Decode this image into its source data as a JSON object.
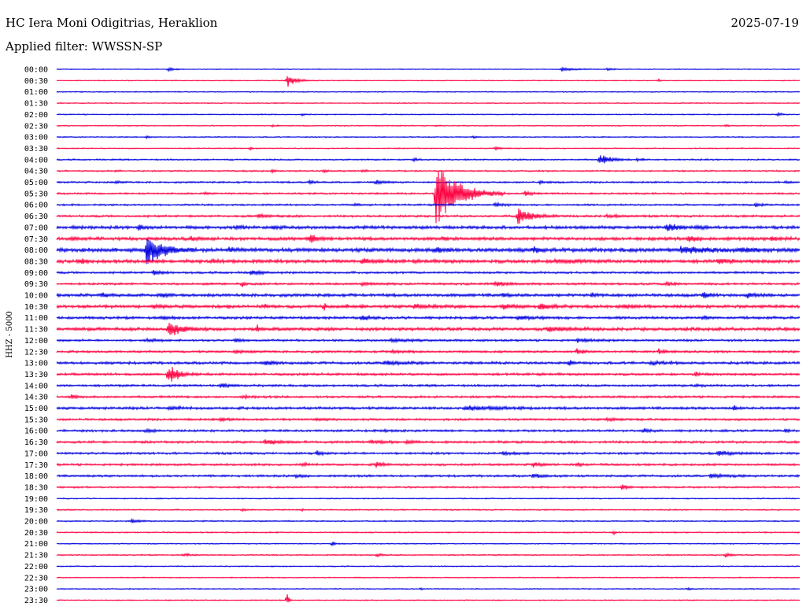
{
  "header": {
    "station": "HC Iera Moni Odigitrias, Heraklion",
    "date": "2025-07-19",
    "filter": "Applied filter: WWSSN-SP"
  },
  "chart_data": {
    "type": "line",
    "title": "HC Iera Moni Odigitrias, Heraklion",
    "ylabel": "HHZ - 5000",
    "grid": false,
    "series_colors": [
      "#0000e0",
      "#ff0040"
    ],
    "rows": [
      {
        "label": "00:00",
        "color": "#0000e0",
        "noise": 0.4,
        "bursts": [
          [
            0.15,
            3,
            14
          ],
          [
            0.68,
            3,
            30
          ],
          [
            0.74,
            2,
            20
          ]
        ]
      },
      {
        "label": "00:30",
        "color": "#ff0040",
        "noise": 0.4,
        "bursts": [
          [
            0.31,
            9,
            22
          ],
          [
            0.81,
            2,
            6
          ]
        ]
      },
      {
        "label": "01:00",
        "color": "#0000e0",
        "noise": 0.5,
        "bursts": []
      },
      {
        "label": "01:30",
        "color": "#ff0040",
        "noise": 0.5,
        "bursts": []
      },
      {
        "label": "02:00",
        "color": "#0000e0",
        "noise": 0.5,
        "bursts": [
          [
            0.33,
            2,
            6
          ],
          [
            0.97,
            3,
            12
          ]
        ]
      },
      {
        "label": "02:30",
        "color": "#ff0040",
        "noise": 0.5,
        "bursts": [
          [
            0.29,
            2,
            10
          ],
          [
            0.51,
            1.5,
            6
          ],
          [
            0.9,
            2,
            8
          ]
        ]
      },
      {
        "label": "03:00",
        "color": "#0000e0",
        "noise": 0.5,
        "bursts": [
          [
            0.12,
            2,
            8
          ],
          [
            0.56,
            2,
            8
          ]
        ]
      },
      {
        "label": "03:30",
        "color": "#ff0040",
        "noise": 0.5,
        "bursts": [
          [
            0.26,
            2,
            8
          ],
          [
            0.59,
            2,
            20
          ]
        ]
      },
      {
        "label": "04:00",
        "color": "#0000e0",
        "noise": 0.7,
        "bursts": [
          [
            0.48,
            3,
            8
          ],
          [
            0.73,
            9,
            26
          ],
          [
            0.78,
            2,
            20
          ]
        ]
      },
      {
        "label": "04:30",
        "color": "#ff0040",
        "noise": 0.7,
        "bursts": [
          [
            0.08,
            2,
            6
          ],
          [
            0.29,
            3,
            8
          ],
          [
            0.36,
            2,
            10
          ],
          [
            0.41,
            2,
            10
          ]
        ]
      },
      {
        "label": "05:00",
        "color": "#0000e0",
        "noise": 0.8,
        "bursts": [
          [
            0.08,
            2,
            12
          ],
          [
            0.34,
            3,
            14
          ],
          [
            0.43,
            3,
            20
          ],
          [
            0.65,
            2,
            16
          ],
          [
            0.98,
            2,
            12
          ]
        ]
      },
      {
        "label": "05:30",
        "color": "#ff0040",
        "noise": 0.8,
        "bursts": [
          [
            0.2,
            2,
            10
          ],
          [
            0.51,
            55,
            55
          ],
          [
            0.63,
            3,
            20
          ]
        ]
      },
      {
        "label": "06:00",
        "color": "#0000e0",
        "noise": 0.8,
        "bursts": [
          [
            0.4,
            2,
            20
          ],
          [
            0.59,
            3,
            24
          ],
          [
            0.94,
            3,
            16
          ]
        ]
      },
      {
        "label": "06:30",
        "color": "#ff0040",
        "noise": 1.0,
        "bursts": [
          [
            0.27,
            2,
            30
          ],
          [
            0.62,
            14,
            34
          ],
          [
            0.74,
            2,
            30
          ]
        ]
      },
      {
        "label": "07:00",
        "color": "#0000e0",
        "noise": 1.4,
        "bursts": [
          [
            0.02,
            2,
            20
          ],
          [
            0.11,
            4,
            18
          ],
          [
            0.24,
            2,
            20
          ],
          [
            0.29,
            3,
            18
          ],
          [
            0.82,
            6,
            28
          ],
          [
            0.86,
            3,
            20
          ]
        ]
      },
      {
        "label": "07:30",
        "color": "#ff0040",
        "noise": 1.5,
        "bursts": [
          [
            0.02,
            2,
            18
          ],
          [
            0.18,
            3,
            16
          ],
          [
            0.34,
            7,
            18
          ],
          [
            0.52,
            2,
            12
          ],
          [
            0.85,
            5,
            16
          ],
          [
            0.96,
            3,
            24
          ]
        ]
      },
      {
        "label": "08:00",
        "color": "#0000e0",
        "noise": 1.8,
        "bursts": [
          [
            0.12,
            26,
            40
          ],
          [
            0.23,
            3,
            20
          ],
          [
            0.51,
            4,
            18
          ],
          [
            0.64,
            4,
            24
          ],
          [
            0.84,
            5,
            60
          ],
          [
            0.92,
            3,
            40
          ]
        ]
      },
      {
        "label": "08:30",
        "color": "#ff0040",
        "noise": 1.6,
        "bursts": [
          [
            0.03,
            3,
            16
          ],
          [
            0.21,
            2,
            18
          ],
          [
            0.41,
            4,
            30
          ],
          [
            0.67,
            3,
            40
          ],
          [
            0.89,
            3,
            30
          ]
        ]
      },
      {
        "label": "09:00",
        "color": "#0000e0",
        "noise": 1.0,
        "bursts": [
          [
            0.13,
            3,
            24
          ],
          [
            0.26,
            3,
            30
          ]
        ]
      },
      {
        "label": "09:30",
        "color": "#ff0040",
        "noise": 1.0,
        "bursts": [
          [
            0.25,
            5,
            6
          ],
          [
            0.41,
            2,
            30
          ],
          [
            0.59,
            3,
            40
          ],
          [
            0.82,
            2,
            20
          ]
        ]
      },
      {
        "label": "10:00",
        "color": "#0000e0",
        "noise": 1.4,
        "bursts": [
          [
            0.06,
            3,
            18
          ],
          [
            0.14,
            3,
            14
          ],
          [
            0.6,
            3,
            10
          ],
          [
            0.72,
            3,
            12
          ],
          [
            0.87,
            8,
            10
          ],
          [
            0.93,
            3,
            20
          ]
        ]
      },
      {
        "label": "10:30",
        "color": "#ff0040",
        "noise": 1.4,
        "bursts": [
          [
            0.13,
            2,
            30
          ],
          [
            0.23,
            7,
            3
          ],
          [
            0.28,
            7,
            3
          ],
          [
            0.36,
            7,
            4
          ],
          [
            0.39,
            6,
            3
          ],
          [
            0.41,
            5,
            4
          ],
          [
            0.48,
            3,
            40
          ],
          [
            0.6,
            4,
            24
          ],
          [
            0.65,
            6,
            28
          ],
          [
            0.76,
            2,
            30
          ]
        ]
      },
      {
        "label": "11:00",
        "color": "#0000e0",
        "noise": 1.2,
        "bursts": [
          [
            0.14,
            2,
            24
          ],
          [
            0.41,
            6,
            16
          ],
          [
            0.62,
            3,
            40
          ],
          [
            0.87,
            3,
            10
          ]
        ]
      },
      {
        "label": "11:30",
        "color": "#ff0040",
        "noise": 1.5,
        "bursts": [
          [
            0.15,
            14,
            30
          ],
          [
            0.27,
            8,
            3
          ],
          [
            0.66,
            3,
            50
          ]
        ]
      },
      {
        "label": "12:00",
        "color": "#0000e0",
        "noise": 1.0,
        "bursts": [
          [
            0.12,
            2,
            30
          ],
          [
            0.24,
            2,
            20
          ],
          [
            0.45,
            2,
            40
          ],
          [
            0.7,
            2,
            40
          ]
        ]
      },
      {
        "label": "12:30",
        "color": "#ff0040",
        "noise": 1.0,
        "bursts": [
          [
            0.24,
            2,
            30
          ],
          [
            0.45,
            2,
            30
          ],
          [
            0.7,
            4,
            20
          ],
          [
            0.81,
            4,
            16
          ]
        ]
      },
      {
        "label": "13:00",
        "color": "#0000e0",
        "noise": 1.2,
        "bursts": [
          [
            0.28,
            4,
            24
          ],
          [
            0.44,
            3,
            50
          ],
          [
            0.69,
            5,
            8
          ],
          [
            0.8,
            2,
            40
          ]
        ]
      },
      {
        "label": "13:30",
        "color": "#ff0040",
        "noise": 1.1,
        "bursts": [
          [
            0.15,
            16,
            24
          ],
          [
            0.86,
            5,
            6
          ]
        ]
      },
      {
        "label": "14:00",
        "color": "#0000e0",
        "noise": 1.0,
        "bursts": [
          [
            0.22,
            3,
            24
          ],
          [
            0.86,
            2,
            12
          ]
        ]
      },
      {
        "label": "14:30",
        "color": "#ff0040",
        "noise": 1.0,
        "bursts": [
          [
            0.02,
            3,
            10
          ],
          [
            0.25,
            2,
            20
          ]
        ]
      },
      {
        "label": "15:00",
        "color": "#0000e0",
        "noise": 1.2,
        "bursts": [
          [
            0.15,
            2,
            30
          ],
          [
            0.55,
            3,
            80
          ],
          [
            0.91,
            4,
            12
          ]
        ]
      },
      {
        "label": "15:30",
        "color": "#ff0040",
        "noise": 1.0,
        "bursts": [
          [
            0.22,
            2,
            30
          ],
          [
            0.35,
            2,
            20
          ],
          [
            0.74,
            2,
            30
          ]
        ]
      },
      {
        "label": "16:00",
        "color": "#0000e0",
        "noise": 1.0,
        "bursts": [
          [
            0.12,
            3,
            16
          ],
          [
            0.44,
            2,
            16
          ],
          [
            0.79,
            3,
            20
          ],
          [
            0.98,
            4,
            10
          ]
        ]
      },
      {
        "label": "16:30",
        "color": "#ff0040",
        "noise": 1.1,
        "bursts": [
          [
            0.28,
            4,
            28
          ],
          [
            0.42,
            2,
            40
          ],
          [
            0.47,
            3,
            16
          ]
        ]
      },
      {
        "label": "17:00",
        "color": "#0000e0",
        "noise": 1.0,
        "bursts": [
          [
            0.35,
            3,
            14
          ],
          [
            0.6,
            3,
            20
          ],
          [
            0.89,
            3,
            40
          ]
        ]
      },
      {
        "label": "17:30",
        "color": "#ff0040",
        "noise": 1.0,
        "bursts": [
          [
            0.33,
            2,
            16
          ],
          [
            0.43,
            5,
            14
          ],
          [
            0.64,
            4,
            20
          ],
          [
            0.7,
            3,
            12
          ]
        ]
      },
      {
        "label": "18:00",
        "color": "#0000e0",
        "noise": 1.0,
        "bursts": [
          [
            0.32,
            2,
            20
          ],
          [
            0.64,
            3,
            24
          ],
          [
            0.88,
            3,
            40
          ]
        ]
      },
      {
        "label": "18:30",
        "color": "#ff0040",
        "noise": 0.8,
        "bursts": [
          [
            0.76,
            4,
            18
          ]
        ]
      },
      {
        "label": "19:00",
        "color": "#0000e0",
        "noise": 0.5,
        "bursts": []
      },
      {
        "label": "19:30",
        "color": "#ff0040",
        "noise": 0.6,
        "bursts": [
          [
            0.25,
            2,
            14
          ],
          [
            0.33,
            2,
            4
          ]
        ]
      },
      {
        "label": "20:00",
        "color": "#0000e0",
        "noise": 0.6,
        "bursts": [
          [
            0.1,
            3,
            20
          ]
        ]
      },
      {
        "label": "20:30",
        "color": "#ff0040",
        "noise": 0.6,
        "bursts": [
          [
            0.75,
            3,
            3
          ]
        ]
      },
      {
        "label": "21:00",
        "color": "#0000e0",
        "noise": 0.5,
        "bursts": [
          [
            0.37,
            4,
            8
          ]
        ]
      },
      {
        "label": "21:30",
        "color": "#ff0040",
        "noise": 0.6,
        "bursts": [
          [
            0.17,
            2,
            20
          ],
          [
            0.43,
            2,
            20
          ],
          [
            0.9,
            4,
            14
          ]
        ]
      },
      {
        "label": "22:00",
        "color": "#0000e0",
        "noise": 0.5,
        "bursts": []
      },
      {
        "label": "22:30",
        "color": "#ff0040",
        "noise": 0.5,
        "bursts": []
      },
      {
        "label": "23:00",
        "color": "#0000e0",
        "noise": 0.5,
        "bursts": [
          [
            0.49,
            2,
            4
          ],
          [
            0.85,
            2,
            8
          ]
        ]
      },
      {
        "label": "23:30",
        "color": "#ff0040",
        "noise": 0.5,
        "bursts": [
          [
            0.31,
            12,
            4
          ]
        ]
      }
    ]
  }
}
